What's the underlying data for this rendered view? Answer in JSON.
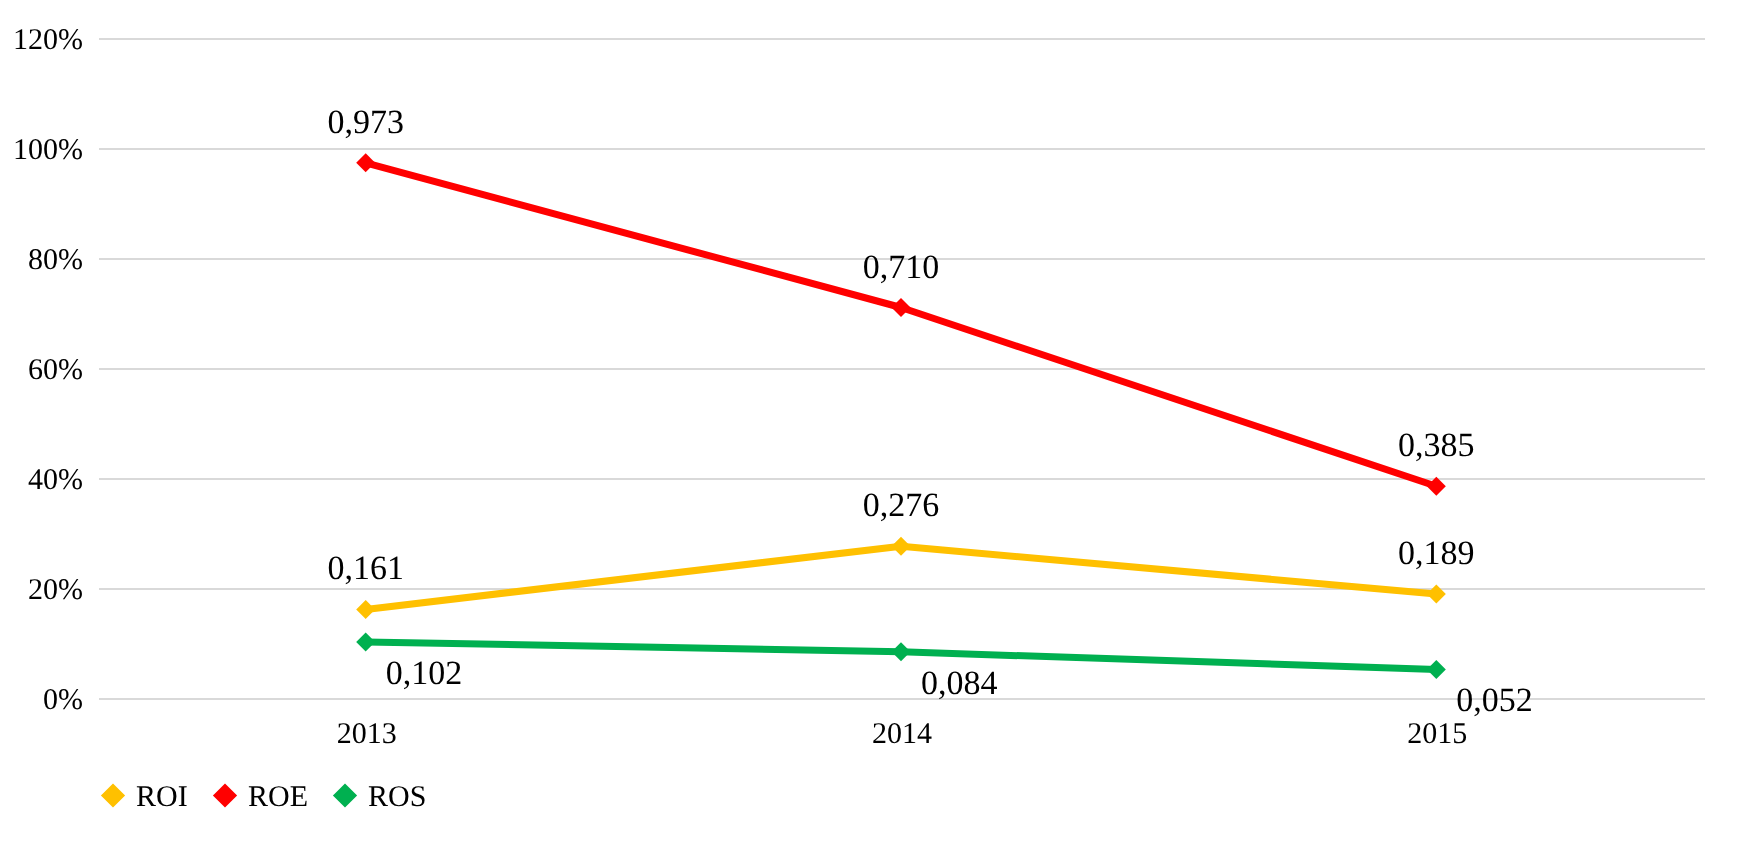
{
  "chart_data": {
    "type": "line",
    "categories": [
      "2013",
      "2014",
      "2015"
    ],
    "series": [
      {
        "name": "ROI",
        "color": "#ffc000",
        "values": [
          0.161,
          0.276,
          0.189
        ],
        "value_labels": [
          "0,161",
          "0,276",
          "0,189"
        ]
      },
      {
        "name": "ROE",
        "color": "#ff0000",
        "values": [
          0.973,
          0.71,
          0.385
        ],
        "value_labels": [
          "0,973",
          "0,710",
          "0,385"
        ]
      },
      {
        "name": "ROS",
        "color": "#00b050",
        "values": [
          0.102,
          0.084,
          0.052
        ],
        "value_labels": [
          "0,102",
          "0,084",
          "0,052"
        ]
      }
    ],
    "ylim": [
      0,
      1.2
    ],
    "yticks": [
      {
        "value": 0,
        "label": "0%"
      },
      {
        "value": 0.2,
        "label": "20%"
      },
      {
        "value": 0.4,
        "label": "40%"
      },
      {
        "value": 0.6,
        "label": "60%"
      },
      {
        "value": 0.8,
        "label": "80%"
      },
      {
        "value": 1,
        "label": "100%"
      },
      {
        "value": 1.2,
        "label": "120%"
      }
    ],
    "grid": "y",
    "legend": "bottom",
    "marker": "diamond",
    "line_style": "solid"
  }
}
